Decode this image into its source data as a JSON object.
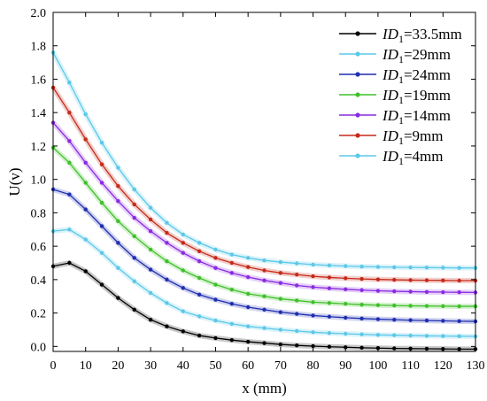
{
  "chart_data": {
    "type": "line",
    "xlabel": "x (mm)",
    "ylabel": "U(v)",
    "xlim": [
      0,
      130
    ],
    "ylim": [
      -0.03,
      2.0
    ],
    "x_ticks": [
      0,
      10,
      20,
      30,
      40,
      50,
      60,
      70,
      80,
      90,
      100,
      110,
      120,
      130
    ],
    "y_ticks": [
      0.0,
      0.2,
      0.4,
      0.6,
      0.8,
      1.0,
      1.2,
      1.4,
      1.6,
      1.8,
      2.0
    ],
    "x_tick_labels": [
      "0",
      "10",
      "20",
      "30",
      "40",
      "50",
      "60",
      "70",
      "80",
      "90",
      "100",
      "110",
      "120",
      "130"
    ],
    "y_tick_labels": [
      "0.0",
      "0.2",
      "0.4",
      "0.6",
      "0.8",
      "1.0",
      "1.2",
      "1.4",
      "1.6",
      "1.8",
      "2.0"
    ],
    "grid": false,
    "legend_position": "top-right",
    "x": [
      0,
      5,
      10,
      15,
      20,
      25,
      30,
      35,
      40,
      45,
      50,
      55,
      60,
      65,
      70,
      75,
      80,
      85,
      90,
      95,
      100,
      105,
      110,
      115,
      120,
      125,
      130
    ],
    "series": [
      {
        "legend_var": "ID",
        "legend_sub": "1",
        "legend_value": "=33.5mm",
        "color": "#000000",
        "y": [
          0.48,
          0.5,
          0.45,
          0.37,
          0.29,
          0.22,
          0.16,
          0.12,
          0.09,
          0.065,
          0.05,
          0.038,
          0.028,
          0.02,
          0.012,
          0.006,
          0.002,
          -0.002,
          -0.005,
          -0.008,
          -0.01,
          -0.012,
          -0.013,
          -0.014,
          -0.015,
          -0.016,
          -0.016
        ]
      },
      {
        "legend_var": "ID",
        "legend_sub": "1",
        "legend_value": "=29mm",
        "color": "#5bc8e8",
        "y": [
          0.69,
          0.7,
          0.64,
          0.56,
          0.47,
          0.39,
          0.32,
          0.26,
          0.21,
          0.18,
          0.155,
          0.135,
          0.12,
          0.11,
          0.1,
          0.092,
          0.085,
          0.08,
          0.076,
          0.072,
          0.069,
          0.067,
          0.065,
          0.063,
          0.062,
          0.061,
          0.06
        ]
      },
      {
        "legend_var": "ID",
        "legend_sub": "1",
        "legend_value": "=24mm",
        "color": "#1f2fb0",
        "y": [
          0.94,
          0.91,
          0.82,
          0.72,
          0.62,
          0.53,
          0.46,
          0.4,
          0.35,
          0.31,
          0.28,
          0.255,
          0.235,
          0.22,
          0.205,
          0.195,
          0.185,
          0.178,
          0.172,
          0.167,
          0.163,
          0.16,
          0.157,
          0.155,
          0.153,
          0.151,
          0.15
        ]
      },
      {
        "legend_var": "ID",
        "legend_sub": "1",
        "legend_value": "=19mm",
        "color": "#3fc02a",
        "y": [
          1.19,
          1.1,
          0.98,
          0.86,
          0.75,
          0.66,
          0.58,
          0.51,
          0.455,
          0.41,
          0.37,
          0.34,
          0.315,
          0.3,
          0.285,
          0.275,
          0.265,
          0.26,
          0.255,
          0.25,
          0.247,
          0.245,
          0.243,
          0.242,
          0.241,
          0.24,
          0.24
        ]
      },
      {
        "legend_var": "ID",
        "legend_sub": "1",
        "legend_value": "=14mm",
        "color": "#8a2be2",
        "y": [
          1.34,
          1.23,
          1.1,
          0.98,
          0.87,
          0.77,
          0.69,
          0.62,
          0.56,
          0.51,
          0.47,
          0.44,
          0.415,
          0.395,
          0.38,
          0.365,
          0.355,
          0.348,
          0.342,
          0.337,
          0.333,
          0.33,
          0.328,
          0.326,
          0.325,
          0.324,
          0.323
        ]
      },
      {
        "legend_var": "ID",
        "legend_sub": "1",
        "legend_value": "=9mm",
        "color": "#c62a1a",
        "y": [
          1.55,
          1.4,
          1.24,
          1.09,
          0.96,
          0.85,
          0.76,
          0.68,
          0.62,
          0.57,
          0.53,
          0.5,
          0.475,
          0.455,
          0.44,
          0.43,
          0.42,
          0.413,
          0.408,
          0.404,
          0.401,
          0.399,
          0.397,
          0.396,
          0.395,
          0.394,
          0.394
        ]
      },
      {
        "legend_var": "ID",
        "legend_sub": "1",
        "legend_value": "=4mm",
        "color": "#5bc8e8",
        "y": [
          1.76,
          1.58,
          1.39,
          1.22,
          1.07,
          0.94,
          0.83,
          0.74,
          0.67,
          0.62,
          0.58,
          0.55,
          0.53,
          0.515,
          0.505,
          0.497,
          0.49,
          0.485,
          0.481,
          0.478,
          0.476,
          0.474,
          0.473,
          0.472,
          0.471,
          0.47,
          0.47
        ]
      }
    ]
  }
}
